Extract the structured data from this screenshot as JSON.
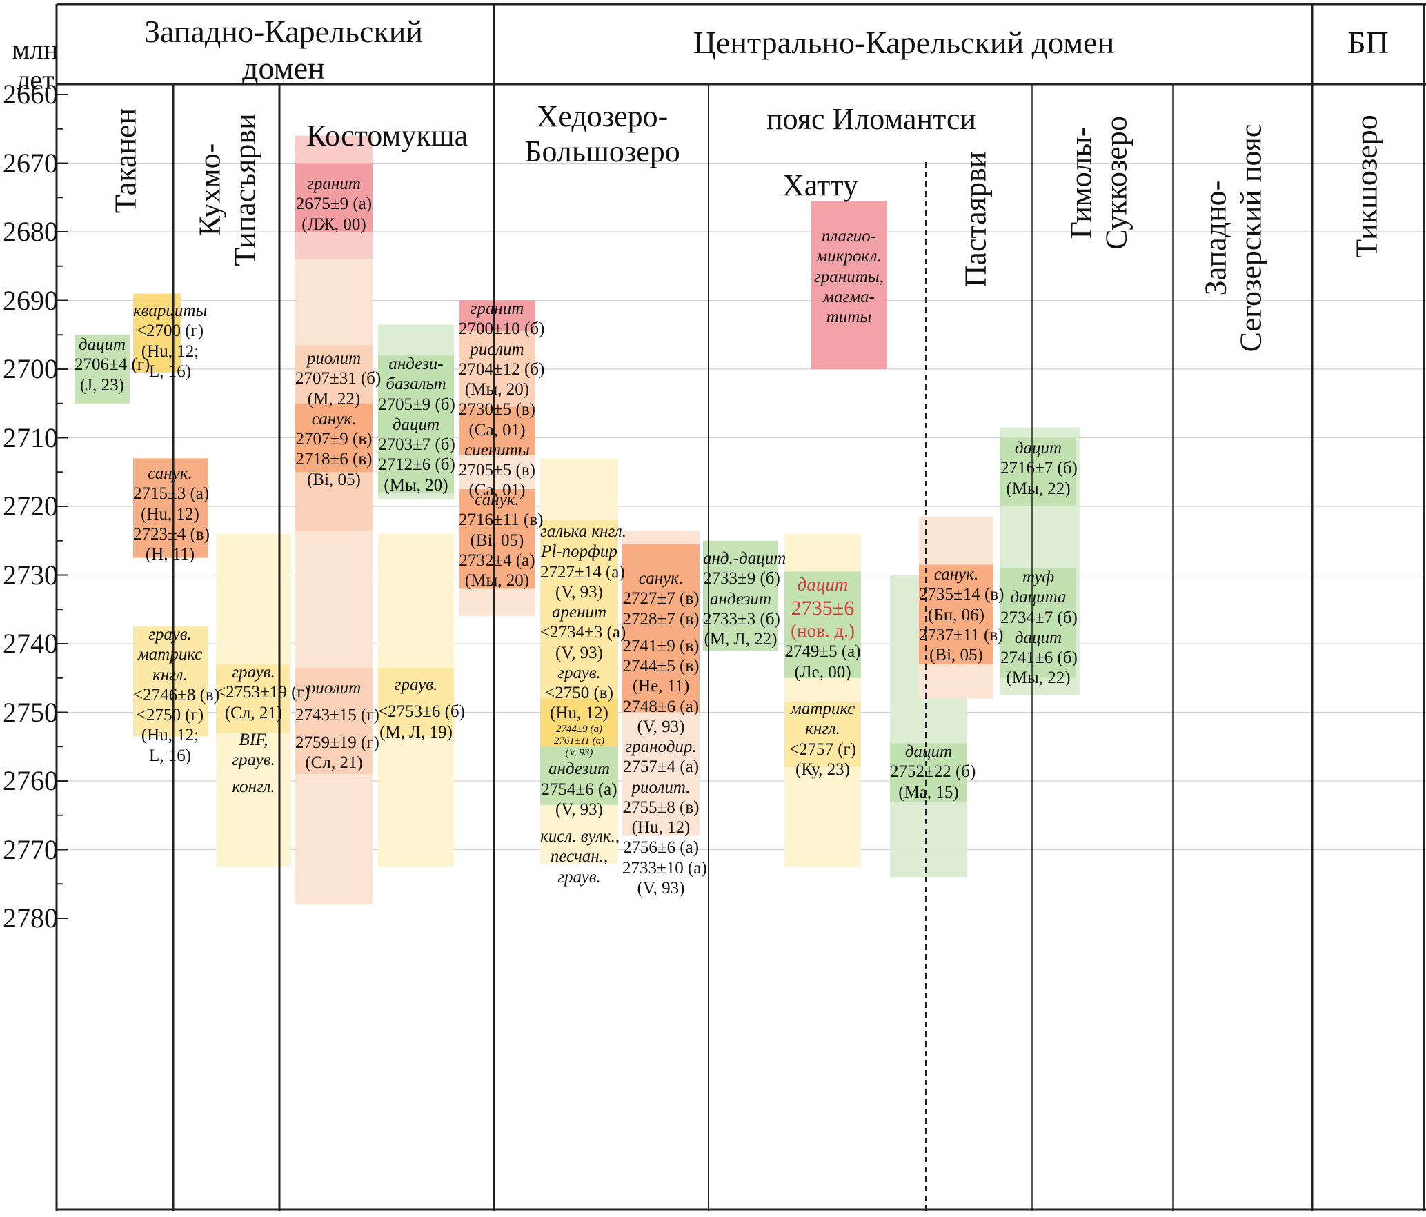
{
  "axis": {
    "title": "млн\nлет",
    "ticks": [
      "2660",
      "2670",
      "2680",
      "2690",
      "2700",
      "2710",
      "2720",
      "2730",
      "2740",
      "2750",
      "2760",
      "2770",
      "2780"
    ],
    "ymin": 2660,
    "ymax": 2780
  },
  "domains": [
    {
      "key": "west",
      "name": "Западно-Карельский\nдомен"
    },
    {
      "key": "central",
      "name": "Центрально-Карельский домен"
    },
    {
      "key": "bp",
      "name": "БП"
    }
  ],
  "columns": [
    {
      "key": "takanen",
      "name": "Таканен",
      "orientation": "vertical"
    },
    {
      "key": "kuhmo",
      "name": "Кухмо-\nТипасъярви",
      "orientation": "vertical"
    },
    {
      "key": "kostomuksha",
      "name": "Костомукша",
      "orientation": "horizontal"
    },
    {
      "key": "hedozero",
      "name": "Хедозеро-\nБольшозеро",
      "orientation": "horizontal"
    },
    {
      "key": "ilomantsi",
      "name": "пояс Иломантси",
      "orientation": "horizontal"
    },
    {
      "key": "hattu",
      "name": "Хатту",
      "orientation": "horizontal"
    },
    {
      "key": "pastayarvi",
      "name": "Пастаярви",
      "orientation": "vertical"
    },
    {
      "key": "gimoly",
      "name": "Гимолы-\nСуккозеро",
      "orientation": "vertical"
    },
    {
      "key": "segozero",
      "name": "Западно-\nСегозерский пояс",
      "orientation": "vertical"
    },
    {
      "key": "tikshozero",
      "name": "Тикшозеро",
      "orientation": "vertical"
    }
  ],
  "colors": {
    "yellow_light": "#fef3cc",
    "yellow": "#fde7a0",
    "yellow_dark": "#fbd770",
    "green_light": "#d9ebcf",
    "green": "#bfe0ac",
    "orange_light": "#fde3d2",
    "peach": "#fbd0b4",
    "orange": "#f6a77a",
    "pink_light": "#f9c9c8",
    "pink": "#f29aa0",
    "red_text": "#d43c3c",
    "grid": "#cfd3d6",
    "line": "#222222"
  },
  "chart_data": {
    "type": "table",
    "y_unit": "млн лет",
    "intervals": [
      {
        "column": "takanen",
        "from": 2695,
        "to": 2705,
        "fill": "green"
      },
      {
        "column": "kuhmo",
        "from": 2689,
        "to": 2700.5,
        "fill": "yellow_dark"
      },
      {
        "column": "kuhmo",
        "from": 2713,
        "to": 2727.5,
        "fill": "orange"
      },
      {
        "column": "kuhmo",
        "from": 2737.5,
        "to": 2753.5,
        "fill": "yellow"
      },
      {
        "column": "kostomuksha",
        "from": 2724,
        "to": 2772.5,
        "fill": "yellow_light"
      },
      {
        "column": "kostomuksha",
        "from": 2743,
        "to": 2753,
        "fill": "yellow"
      },
      {
        "column": "kostomuksha",
        "from": 2666,
        "to": 2778,
        "fill": "orange_light"
      },
      {
        "column": "kostomuksha",
        "from": 2666,
        "to": 2684,
        "fill": "pink_light"
      },
      {
        "column": "kostomuksha",
        "from": 2670,
        "to": 2680,
        "fill": "pink"
      },
      {
        "column": "kostomuksha",
        "from": 2696.5,
        "to": 2723.5,
        "fill": "peach"
      },
      {
        "column": "kostomuksha",
        "from": 2705,
        "to": 2715,
        "fill": "orange"
      },
      {
        "column": "kostomuksha",
        "from": 2743.5,
        "to": 2759,
        "fill": "peach"
      },
      {
        "column": "hedozero",
        "from": 2693.5,
        "to": 2719,
        "fill": "green_light"
      },
      {
        "column": "hedozero",
        "from": 2698,
        "to": 2718,
        "fill": "green"
      },
      {
        "column": "hedozero",
        "from": 2724,
        "to": 2772.5,
        "fill": "yellow_light"
      },
      {
        "column": "hedozero",
        "from": 2743.5,
        "to": 2753.5,
        "fill": "yellow"
      },
      {
        "column": "hedozero",
        "from": 2690,
        "to": 2736,
        "fill": "orange_light"
      },
      {
        "column": "hedozero",
        "from": 2690,
        "to": 2694.5,
        "fill": "pink"
      },
      {
        "column": "hedozero",
        "from": 2694.5,
        "to": 2705.5,
        "fill": "peach"
      },
      {
        "column": "hedozero",
        "from": 2705.5,
        "to": 2712.5,
        "fill": "orange"
      },
      {
        "column": "hedozero",
        "from": 2717.5,
        "to": 2732,
        "fill": "orange"
      },
      {
        "column": "ilomantsi",
        "from": 2713,
        "to": 2772,
        "fill": "yellow_light"
      },
      {
        "column": "ilomantsi",
        "from": 2722,
        "to": 2748,
        "fill": "yellow"
      },
      {
        "column": "ilomantsi",
        "from": 2748,
        "to": 2755,
        "fill": "yellow_dark"
      },
      {
        "column": "ilomantsi",
        "from": 2755,
        "to": 2763.5,
        "fill": "green"
      },
      {
        "column": "hattu",
        "from": 2723.5,
        "to": 2768,
        "fill": "orange_light"
      },
      {
        "column": "hattu",
        "from": 2725.5,
        "to": 2750,
        "fill": "orange"
      },
      {
        "column": "pastayarvi",
        "from": 2725,
        "to": 2741,
        "fill": "green"
      },
      {
        "column": "gimoly",
        "from": 2675.5,
        "to": 2700,
        "fill": "pink"
      },
      {
        "column": "gimoly",
        "from": 2724,
        "to": 2772.5,
        "fill": "yellow_light"
      },
      {
        "column": "gimoly",
        "from": 2729.5,
        "to": 2745,
        "fill": "green"
      },
      {
        "column": "gimoly",
        "from": 2748.5,
        "to": 2758,
        "fill": "yellow"
      },
      {
        "column": "segozero",
        "from": 2730,
        "to": 2774,
        "fill": "green_light"
      },
      {
        "column": "segozero",
        "from": 2721.5,
        "to": 2748,
        "fill": "orange_light"
      },
      {
        "column": "segozero",
        "from": 2728.5,
        "to": 2743,
        "fill": "orange"
      },
      {
        "column": "segozero",
        "from": 2754.5,
        "to": 2763,
        "fill": "green"
      },
      {
        "column": "tikshozero",
        "from": 2708.5,
        "to": 2747.5,
        "fill": "green_light"
      },
      {
        "column": "tikshozero",
        "from": 2710,
        "to": 2720,
        "fill": "green"
      },
      {
        "column": "tikshozero",
        "from": 2729,
        "to": 2745,
        "fill": "green"
      }
    ],
    "labels": [
      {
        "column": "takanen",
        "lines": [
          {
            "t": "дацит",
            "s": "ital"
          },
          {
            "t": "2706±4 (г)"
          },
          {
            "t": "(J, 23)"
          }
        ]
      },
      {
        "column": "kuhmo",
        "lines": [
          {
            "t": "кварциты",
            "s": "ital"
          },
          {
            "t": "<2700 (г)"
          },
          {
            "t": "(Hu, 12;"
          },
          {
            "t": "L, 16)"
          }
        ]
      },
      {
        "column": "kuhmo",
        "lines": [
          {
            "t": "санук.",
            "s": "ital"
          },
          {
            "t": "2715±3 (а)"
          },
          {
            "t": "(Hu, 12)"
          },
          {
            "t": "2723±4 (в)"
          },
          {
            "t": "(H, 11)"
          }
        ]
      },
      {
        "column": "kuhmo",
        "lines": [
          {
            "t": "граув.",
            "s": "ital"
          },
          {
            "t": "матрикс",
            "s": "ital"
          },
          {
            "t": "кнгл.",
            "s": "ital"
          },
          {
            "t": "<2746±8 (в)"
          },
          {
            "t": "<2750 (г)"
          },
          {
            "t": "(Hu, 12;"
          },
          {
            "t": "L, 16)"
          }
        ]
      },
      {
        "column": "kostomuksha",
        "lines": [
          {
            "t": "граув.",
            "s": "ital"
          },
          {
            "t": "<2753±19 (г)"
          },
          {
            "t": "(Сл, 21)"
          },
          {
            "t": ""
          },
          {
            "t": "BIF,",
            "s": "ital"
          },
          {
            "t": "граув.",
            "s": "ital"
          },
          {
            "t": ""
          },
          {
            "t": "конгл.",
            "s": "ital"
          }
        ]
      },
      {
        "column": "kostomuksha",
        "lines": [
          {
            "t": "гранит",
            "s": "ital"
          },
          {
            "t": "2675±9 (а)"
          },
          {
            "t": "(ЛЖ, 00)"
          }
        ]
      },
      {
        "column": "kostomuksha",
        "lines": [
          {
            "t": "риолит",
            "s": "ital"
          },
          {
            "t": "2707±31 (б)"
          },
          {
            "t": "(M, 22)"
          },
          {
            "t": "санук.",
            "s": "ital"
          },
          {
            "t": "2707±9 (в)"
          },
          {
            "t": "2718±6 (в)"
          },
          {
            "t": "(Bi, 05)"
          }
        ]
      },
      {
        "column": "kostomuksha",
        "lines": [
          {
            "t": "риолит",
            "s": "ital"
          },
          {
            "t": ""
          },
          {
            "t": "2743±15 (г)"
          },
          {
            "t": ""
          },
          {
            "t": "2759±19 (г)"
          },
          {
            "t": "(Сл, 21)"
          }
        ]
      },
      {
        "column": "hedozero",
        "lines": [
          {
            "t": "андези-",
            "s": "ital"
          },
          {
            "t": "базальт",
            "s": "ital"
          },
          {
            "t": "2705±9 (б)"
          },
          {
            "t": "дацит",
            "s": "ital"
          },
          {
            "t": "2703±7  (б)"
          },
          {
            "t": "2712±6  (б)"
          },
          {
            "t": "(Мы, 20)"
          }
        ]
      },
      {
        "column": "hedozero",
        "lines": [
          {
            "t": "граув.",
            "s": "ital"
          },
          {
            "t": ""
          },
          {
            "t": "<2753±6 (б)"
          },
          {
            "t": "(М, Л, 19)"
          }
        ]
      },
      {
        "column": "hedozero",
        "lines": [
          {
            "t": "гранит",
            "s": "ital"
          },
          {
            "t": "2700±10 (б)"
          },
          {
            "t": "риолит",
            "s": "ital"
          },
          {
            "t": "2704±12 (б)"
          },
          {
            "t": "(Мы, 20)"
          },
          {
            "t": "2730±5 (в)"
          },
          {
            "t": "(Са, 01)"
          },
          {
            "t": "сиениты",
            "s": "ital"
          },
          {
            "t": "2705±5 (в)"
          },
          {
            "t": "(Са, 01)"
          }
        ]
      },
      {
        "column": "hedozero",
        "lines": [
          {
            "t": "санук.",
            "s": "ital"
          },
          {
            "t": "2716±11 (в)"
          },
          {
            "t": "(Bi, 05)"
          },
          {
            "t": "2732±4  (а)"
          },
          {
            "t": "(Мы, 20)"
          }
        ]
      },
      {
        "column": "ilomantsi",
        "lines": [
          {
            "t": "галька кнгл.",
            "s": "ital"
          },
          {
            "t": "Pl-порфир",
            "s": "ital"
          },
          {
            "t": "2727±14 (а)"
          },
          {
            "t": "(V, 93)"
          },
          {
            "t": "аренит",
            "s": "ital"
          },
          {
            "t": "<2734±3 (а)"
          },
          {
            "t": "(V, 93)"
          },
          {
            "t": "граув.",
            "s": "ital"
          },
          {
            "t": "<2750 (в)"
          },
          {
            "t": "(Hu, 12)"
          },
          {
            "t": "2744±9 (а)",
            "s": "small"
          },
          {
            "t": "2761±11 (а)",
            "s": "small"
          },
          {
            "t": "(V, 93)",
            "s": "small"
          },
          {
            "t": "андезит",
            "s": "ital"
          },
          {
            "t": "2754±6 (а)"
          },
          {
            "t": "(V, 93)"
          },
          {
            "t": ""
          },
          {
            "t": "кисл. вулк.,",
            "s": "ital"
          },
          {
            "t": "песчан.,",
            "s": "ital"
          },
          {
            "t": "граув.",
            "s": "ital"
          }
        ]
      },
      {
        "column": "hattu",
        "lines": [
          {
            "t": "санук.",
            "s": "ital"
          },
          {
            "t": "2727±7 (в)"
          },
          {
            "t": "2728±7 (в)"
          },
          {
            "t": ""
          },
          {
            "t": "2741±9 (в)"
          },
          {
            "t": "2744±5 (в)"
          },
          {
            "t": "(He, 11)"
          },
          {
            "t": "2748±6 (а)"
          },
          {
            "t": "(V, 93)"
          },
          {
            "t": "гранодир.",
            "s": "ital"
          },
          {
            "t": "2757±4 (а)"
          },
          {
            "t": "риолит.",
            "s": "ital"
          },
          {
            "t": "2755±8 (в)"
          },
          {
            "t": "(Hu, 12)"
          },
          {
            "t": "2756±6 (а)"
          },
          {
            "t": "2733±10 (а)"
          },
          {
            "t": "(V, 93)"
          }
        ]
      },
      {
        "column": "pastayarvi",
        "lines": [
          {
            "t": "анд.-дацит",
            "s": "ital"
          },
          {
            "t": "2733±9 (б)"
          },
          {
            "t": "андезит",
            "s": "ital"
          },
          {
            "t": "2733±3 (б)"
          },
          {
            "t": "(М, Л, 22)"
          }
        ]
      },
      {
        "column": "gimoly",
        "lines": [
          {
            "t": "плагио-",
            "s": "ital"
          },
          {
            "t": "микрокл.",
            "s": "ital"
          },
          {
            "t": "граниты,",
            "s": "ital"
          },
          {
            "t": "магма-",
            "s": "ital"
          },
          {
            "t": "титы",
            "s": "ital"
          }
        ]
      },
      {
        "column": "gimoly",
        "lines": [
          {
            "t": "дацит",
            "s": "redital"
          },
          {
            "t": "2735±6",
            "s": "redbig"
          },
          {
            "t": "(нов. д.)",
            "s": "red"
          },
          {
            "t": "2749±5 (а)"
          },
          {
            "t": "(Ле, 00)"
          }
        ]
      },
      {
        "column": "gimoly",
        "lines": [
          {
            "t": "матрикс",
            "s": "ital"
          },
          {
            "t": "кнгл.",
            "s": "ital"
          },
          {
            "t": "<2757 (г)"
          },
          {
            "t": "(Ку, 23)"
          }
        ]
      },
      {
        "column": "segozero",
        "lines": [
          {
            "t": "санук.",
            "s": "ital"
          },
          {
            "t": "2735±14 (в)"
          },
          {
            "t": "(Бп, 06)"
          },
          {
            "t": "2737±11 (в)"
          },
          {
            "t": "(Bi, 05)"
          }
        ]
      },
      {
        "column": "segozero",
        "lines": [
          {
            "t": "дацит",
            "s": "ital"
          },
          {
            "t": "2752±22 (б)"
          },
          {
            "t": "(Ма, 15)"
          }
        ]
      },
      {
        "column": "tikshozero",
        "lines": [
          {
            "t": "дацит",
            "s": "ital"
          },
          {
            "t": "2716±7 (б)"
          },
          {
            "t": "(Мы, 22)"
          }
        ]
      },
      {
        "column": "tikshozero",
        "lines": [
          {
            "t": "туф",
            "s": "ital"
          },
          {
            "t": "дацита",
            "s": "ital"
          },
          {
            "t": "2734±7 (б)"
          },
          {
            "t": "дацит",
            "s": "ital"
          },
          {
            "t": "2741±6 (б)"
          },
          {
            "t": "(Мы, 22)"
          }
        ]
      }
    ]
  }
}
